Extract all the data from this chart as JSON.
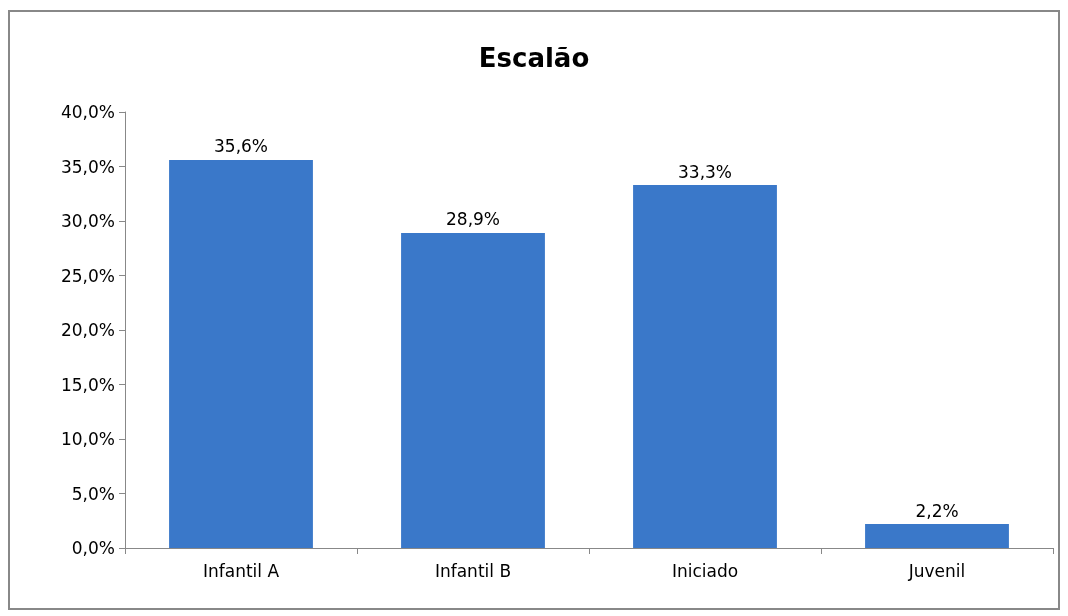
{
  "chart_data": {
    "type": "bar",
    "title": "Escalão",
    "categories": [
      "Infantil A",
      "Infantil B",
      "Iniciado",
      "Juvenil"
    ],
    "values": [
      35.6,
      28.9,
      33.3,
      2.2
    ],
    "value_labels": [
      "35,6%",
      "28,9%",
      "33,3%",
      "2,2%"
    ],
    "color": "#3a78c9",
    "ylim": [
      0,
      40
    ],
    "yticks": [
      {
        "value": 0,
        "label": "0,0%"
      },
      {
        "value": 5,
        "label": "5,0%"
      },
      {
        "value": 10,
        "label": "10,0%"
      },
      {
        "value": 15,
        "label": "15,0%"
      },
      {
        "value": 20,
        "label": "20,0%"
      },
      {
        "value": 25,
        "label": "25,0%"
      },
      {
        "value": 30,
        "label": "30,0%"
      },
      {
        "value": 35,
        "label": "35,0%"
      },
      {
        "value": 40,
        "label": "40,0%"
      }
    ],
    "grid": false
  }
}
